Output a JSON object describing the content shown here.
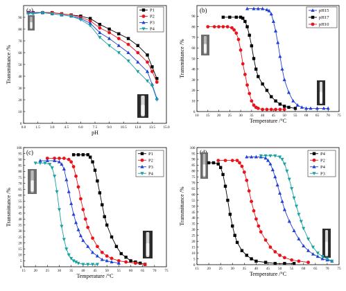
{
  "colors": {
    "black": "#000000",
    "red": "#e8141b",
    "blue": "#1f3fd8",
    "teal": "#1aa0a0"
  },
  "chart_data": [
    {
      "type": "line",
      "panel_label": "(a)",
      "xlabel": "pH",
      "ylabel": "Transmittance /%",
      "xlim": [
        0,
        15
      ],
      "ylim": [
        0,
        100
      ],
      "xticks": [
        "0.0",
        "1.5",
        "3.0",
        "4.5",
        "6.0",
        "7.5",
        "9.0",
        "10.5",
        "12.0",
        "13.5",
        "15.0"
      ],
      "yticks": [
        "0",
        "10",
        "20",
        "30",
        "40",
        "50",
        "60",
        "70",
        "80",
        "90"
      ],
      "legend_position": "top-right",
      "series": [
        {
          "name": "P1",
          "color": "#000000",
          "marker": "square",
          "x": [
            0.5,
            1,
            2,
            3,
            4,
            5,
            6,
            7,
            8,
            9,
            10,
            11,
            12,
            13,
            13.5,
            14.0
          ],
          "y": [
            94,
            94,
            94,
            94,
            93,
            92,
            91,
            89,
            84,
            80,
            76,
            72,
            66,
            58,
            48,
            38
          ]
        },
        {
          "name": "P2",
          "color": "#e8141b",
          "marker": "circle",
          "x": [
            0.5,
            1,
            2,
            3,
            4,
            5,
            6,
            7,
            8,
            9,
            10,
            11,
            12,
            13,
            13.5,
            14.0
          ],
          "y": [
            94,
            94,
            94,
            94,
            93,
            92,
            90,
            87,
            81,
            77,
            72,
            67,
            60,
            52,
            44,
            35
          ]
        },
        {
          "name": "P3",
          "color": "#1f3fd8",
          "marker": "triangle-up",
          "x": [
            0.5,
            1,
            2,
            3,
            4,
            5,
            6,
            7,
            8,
            9,
            10,
            11,
            12,
            13,
            13.5,
            14.0
          ],
          "y": [
            94,
            94,
            94,
            93,
            92,
            91,
            89,
            85,
            77,
            72,
            66,
            60,
            52,
            44,
            33,
            21
          ]
        },
        {
          "name": "P4",
          "color": "#1aa0a0",
          "marker": "triangle-down",
          "x": [
            0.5,
            1,
            2,
            3,
            4,
            5,
            6,
            7,
            8,
            9,
            10,
            11,
            12,
            13,
            13.5,
            14.0
          ],
          "y": [
            93,
            93,
            94,
            93,
            92,
            91,
            88,
            83,
            73,
            66,
            60,
            53,
            44,
            36,
            32,
            20
          ]
        }
      ]
    },
    {
      "type": "line",
      "panel_label": "(b)",
      "xlabel": "Temperature /°C",
      "ylabel": "Transmittance /%",
      "xlim": [
        10,
        75
      ],
      "ylim": [
        0,
        100
      ],
      "xticks": [
        "10",
        "15",
        "20",
        "25",
        "30",
        "35",
        "40",
        "45",
        "50",
        "55",
        "60",
        "65",
        "70",
        "75"
      ],
      "yticks": [
        "0",
        "10",
        "20",
        "30",
        "40",
        "50",
        "60",
        "70",
        "80",
        "90"
      ],
      "legend_position": "top-right",
      "series": [
        {
          "name": "pH15",
          "color": "#1f3fd8",
          "marker": "triangle-up",
          "x": [
            33,
            36,
            38,
            40,
            42,
            43,
            44,
            45,
            46,
            47,
            48,
            49,
            50,
            52,
            54,
            56,
            58,
            60,
            62,
            65,
            68,
            70
          ],
          "y": [
            97,
            97,
            97,
            97,
            96,
            95,
            92,
            85,
            76,
            65,
            52,
            40,
            30,
            18,
            10,
            6,
            4,
            3,
            3,
            3,
            3,
            3
          ]
        },
        {
          "name": "pH17",
          "color": "#000000",
          "marker": "square",
          "x": [
            22,
            25,
            28,
            30,
            31,
            32,
            33,
            34,
            35,
            36,
            37,
            38,
            40,
            42,
            44,
            46,
            48,
            50,
            52,
            55
          ],
          "y": [
            89,
            89,
            89,
            89,
            88,
            85,
            80,
            72,
            62,
            50,
            40,
            33,
            26,
            20,
            14,
            10,
            7,
            5,
            4,
            3
          ]
        },
        {
          "name": "pH10",
          "color": "#e8141b",
          "marker": "circle",
          "x": [
            15,
            18,
            20,
            22,
            24,
            26,
            27,
            28,
            29,
            30,
            31,
            32,
            33,
            34,
            35,
            36,
            37,
            38,
            40,
            42,
            44,
            46,
            48,
            50
          ],
          "y": [
            80,
            80,
            80,
            80,
            80,
            79,
            77,
            74,
            68,
            58,
            45,
            35,
            25,
            17,
            10,
            6,
            4,
            3,
            2,
            2,
            2,
            2,
            2,
            2
          ]
        }
      ]
    },
    {
      "type": "line",
      "panel_label": "(c)",
      "xlabel": "Temperature /°C",
      "ylabel": "Transmittance /%",
      "xlim": [
        15,
        75
      ],
      "ylim": [
        0,
        100
      ],
      "xticks": [
        "15",
        "20",
        "25",
        "30",
        "35",
        "40",
        "45",
        "50",
        "55",
        "60",
        "65",
        "70",
        "75"
      ],
      "yticks": [
        "0",
        "5",
        "10",
        "15",
        "20",
        "25",
        "30",
        "35",
        "40",
        "45",
        "50",
        "55",
        "60",
        "65",
        "70",
        "75",
        "80",
        "85",
        "90",
        "95",
        "100"
      ],
      "legend_position": "top-right",
      "series": [
        {
          "name": "P1",
          "color": "#000000",
          "marker": "square",
          "x": [
            36,
            38,
            40,
            42,
            43,
            44,
            45,
            46,
            47,
            48,
            49,
            50,
            52,
            54,
            56,
            58,
            60,
            62,
            64,
            66
          ],
          "y": [
            94,
            94,
            94,
            94,
            92,
            88,
            81,
            72,
            62,
            52,
            42,
            35,
            25,
            17,
            11,
            8,
            5,
            4,
            3,
            2
          ]
        },
        {
          "name": "P2",
          "color": "#e8141b",
          "marker": "circle",
          "x": [
            25,
            28,
            30,
            32,
            34,
            35,
            36,
            37,
            38,
            39,
            40,
            41,
            42,
            44,
            46,
            48,
            50,
            52,
            55,
            58,
            62,
            66
          ],
          "y": [
            91,
            91,
            91,
            91,
            90,
            88,
            84,
            76,
            67,
            57,
            48,
            40,
            33,
            24,
            17,
            12,
            9,
            7,
            5,
            4,
            3,
            2
          ]
        },
        {
          "name": "P3",
          "color": "#1f3fd8",
          "marker": "triangle-up",
          "x": [
            22,
            25,
            28,
            30,
            31,
            32,
            33,
            34,
            35,
            36,
            37,
            38,
            39,
            40,
            42,
            44,
            46,
            48,
            50,
            52,
            55
          ],
          "y": [
            89,
            89,
            89,
            88,
            86,
            82,
            73,
            63,
            53,
            44,
            37,
            31,
            26,
            22,
            17,
            12,
            9,
            6,
            5,
            4,
            3
          ]
        },
        {
          "name": "P4",
          "color": "#1aa0a0",
          "marker": "triangle-down",
          "x": [
            20,
            22,
            24,
            26,
            27,
            28,
            29,
            30,
            31,
            32,
            33,
            34,
            35,
            36,
            37,
            38,
            40,
            42,
            44,
            46
          ],
          "y": [
            87,
            87,
            87,
            86,
            83,
            76,
            63,
            48,
            34,
            23,
            15,
            10,
            7,
            5,
            4,
            3,
            2,
            2,
            2,
            2
          ]
        }
      ]
    },
    {
      "type": "line",
      "panel_label": "(d)",
      "xlabel": "Temperature /°C",
      "ylabel": "Transmittance /%",
      "xlim": [
        15,
        75
      ],
      "ylim": [
        0,
        100
      ],
      "xticks": [
        "15",
        "20",
        "25",
        "30",
        "35",
        "40",
        "45",
        "50",
        "55",
        "60",
        "65",
        "70",
        "75"
      ],
      "yticks": [
        "0",
        "5",
        "10",
        "15",
        "20",
        "25",
        "30",
        "35",
        "40",
        "45",
        "50",
        "55",
        "60",
        "65",
        "70",
        "75",
        "80",
        "85",
        "90",
        "95",
        "100"
      ],
      "legend_position": "top-right",
      "series": [
        {
          "name": "P4",
          "color": "#000000",
          "marker": "square",
          "x": [
            20,
            22,
            24,
            25,
            26,
            27,
            28,
            29,
            30,
            31,
            32,
            34,
            36,
            38,
            40,
            44,
            48,
            52,
            56
          ],
          "y": [
            87,
            87,
            86,
            83,
            77,
            67,
            55,
            43,
            33,
            25,
            19,
            12,
            8,
            5,
            3,
            2,
            1,
            1,
            1
          ]
        },
        {
          "name": "P2",
          "color": "#e8141b",
          "marker": "circle",
          "x": [
            24,
            27,
            30,
            32,
            33,
            34,
            35,
            36,
            37,
            38,
            39,
            40,
            41,
            42,
            44,
            46,
            48,
            50,
            52,
            55,
            58,
            62
          ],
          "y": [
            89,
            89,
            89,
            89,
            87,
            84,
            79,
            72,
            63,
            54,
            46,
            39,
            33,
            28,
            21,
            15,
            11,
            8,
            6,
            4,
            3,
            2
          ]
        },
        {
          "name": "P4",
          "color": "#1f3fd8",
          "marker": "triangle-up",
          "x": [
            36,
            38,
            40,
            42,
            44,
            45,
            46,
            47,
            48,
            49,
            50,
            51,
            52,
            54,
            56,
            58,
            60,
            62,
            64,
            66,
            68,
            70,
            72
          ],
          "y": [
            92,
            92,
            92,
            92,
            91,
            89,
            86,
            81,
            75,
            68,
            61,
            54,
            47,
            37,
            29,
            22,
            16,
            12,
            9,
            7,
            5,
            4,
            3
          ]
        },
        {
          "name": "P3",
          "color": "#1aa0a0",
          "marker": "triangle-down",
          "x": [
            42,
            44,
            46,
            48,
            50,
            51,
            52,
            53,
            54,
            55,
            56,
            57,
            58,
            59,
            60,
            62,
            64,
            66,
            68,
            70,
            72
          ],
          "y": [
            93,
            93,
            93,
            93,
            92,
            90,
            86,
            80,
            73,
            65,
            57,
            50,
            43,
            37,
            31,
            22,
            15,
            10,
            7,
            5,
            3
          ]
        }
      ]
    }
  ]
}
